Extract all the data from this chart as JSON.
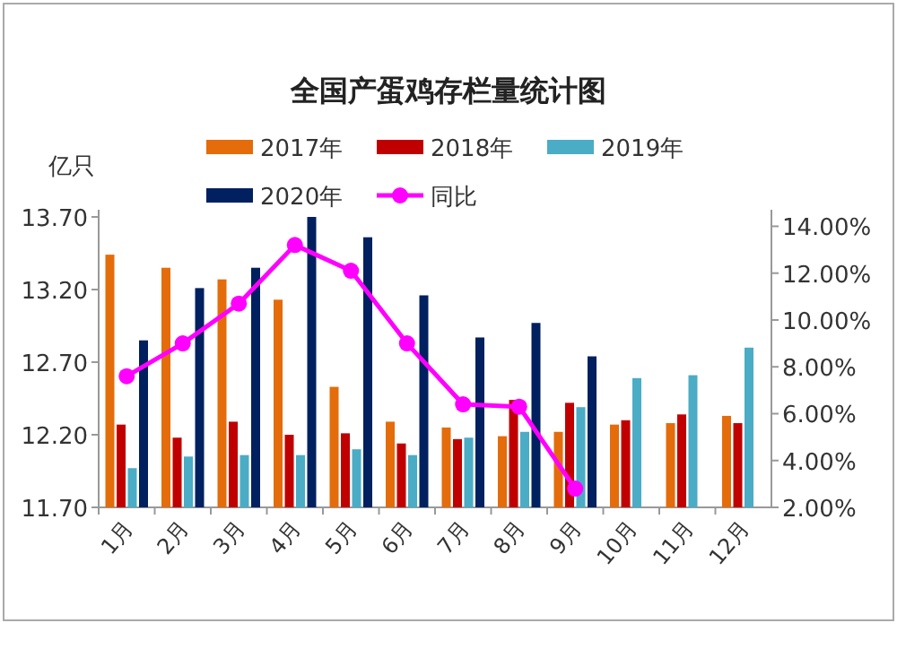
{
  "chart_data": {
    "type": "bar",
    "title": "全国产蛋鸡存栏量统计图",
    "ylabel": "亿只",
    "categories": [
      "1月",
      "2月",
      "3月",
      "4月",
      "5月",
      "6月",
      "7月",
      "8月",
      "9月",
      "10月",
      "11月",
      "12月"
    ],
    "series": [
      {
        "name": "2017年",
        "color": "#e46c0a",
        "values": [
          13.44,
          13.35,
          13.27,
          13.13,
          12.53,
          12.29,
          12.25,
          12.19,
          12.22,
          12.27,
          12.28,
          12.33
        ]
      },
      {
        "name": "2018年",
        "color": "#c00000",
        "values": [
          12.27,
          12.18,
          12.29,
          12.2,
          12.21,
          12.14,
          12.17,
          12.44,
          12.42,
          12.3,
          12.34,
          12.28
        ]
      },
      {
        "name": "2019年",
        "color": "#4bacc6",
        "values": [
          11.97,
          12.05,
          12.06,
          12.06,
          12.1,
          12.06,
          12.18,
          12.22,
          12.39,
          12.59,
          12.61,
          12.8
        ]
      },
      {
        "name": "2020年",
        "color": "#002060",
        "values": [
          12.85,
          13.21,
          13.35,
          13.7,
          13.56,
          13.16,
          12.87,
          12.97,
          12.74,
          null,
          null,
          null
        ]
      },
      {
        "name": "同比",
        "color": "#ff00ff",
        "type": "line",
        "axis": "y2",
        "marker": "circle",
        "values": [
          7.6,
          9.0,
          10.7,
          13.2,
          12.1,
          9.0,
          6.4,
          6.3,
          2.8,
          null,
          null,
          null
        ]
      }
    ],
    "ylim": [
      11.7,
      13.7
    ],
    "yticks": [
      {
        "value": 11.7,
        "label": "11.70"
      },
      {
        "value": 12.2,
        "label": "12.20"
      },
      {
        "value": 12.7,
        "label": "12.70"
      },
      {
        "value": 13.2,
        "label": "13.20"
      },
      {
        "value": 13.7,
        "label": "13.70"
      }
    ],
    "y2lim": [
      2,
      14.4
    ],
    "y2ticks": [
      {
        "value": 2,
        "label": "2.00%"
      },
      {
        "value": 4,
        "label": "4.00%"
      },
      {
        "value": 6,
        "label": "6.00%"
      },
      {
        "value": 8,
        "label": "8.00%"
      },
      {
        "value": 10,
        "label": "10.00%"
      },
      {
        "value": 12,
        "label": "12.00%"
      },
      {
        "value": 14,
        "label": "14.00%"
      }
    ],
    "legend": "top"
  }
}
